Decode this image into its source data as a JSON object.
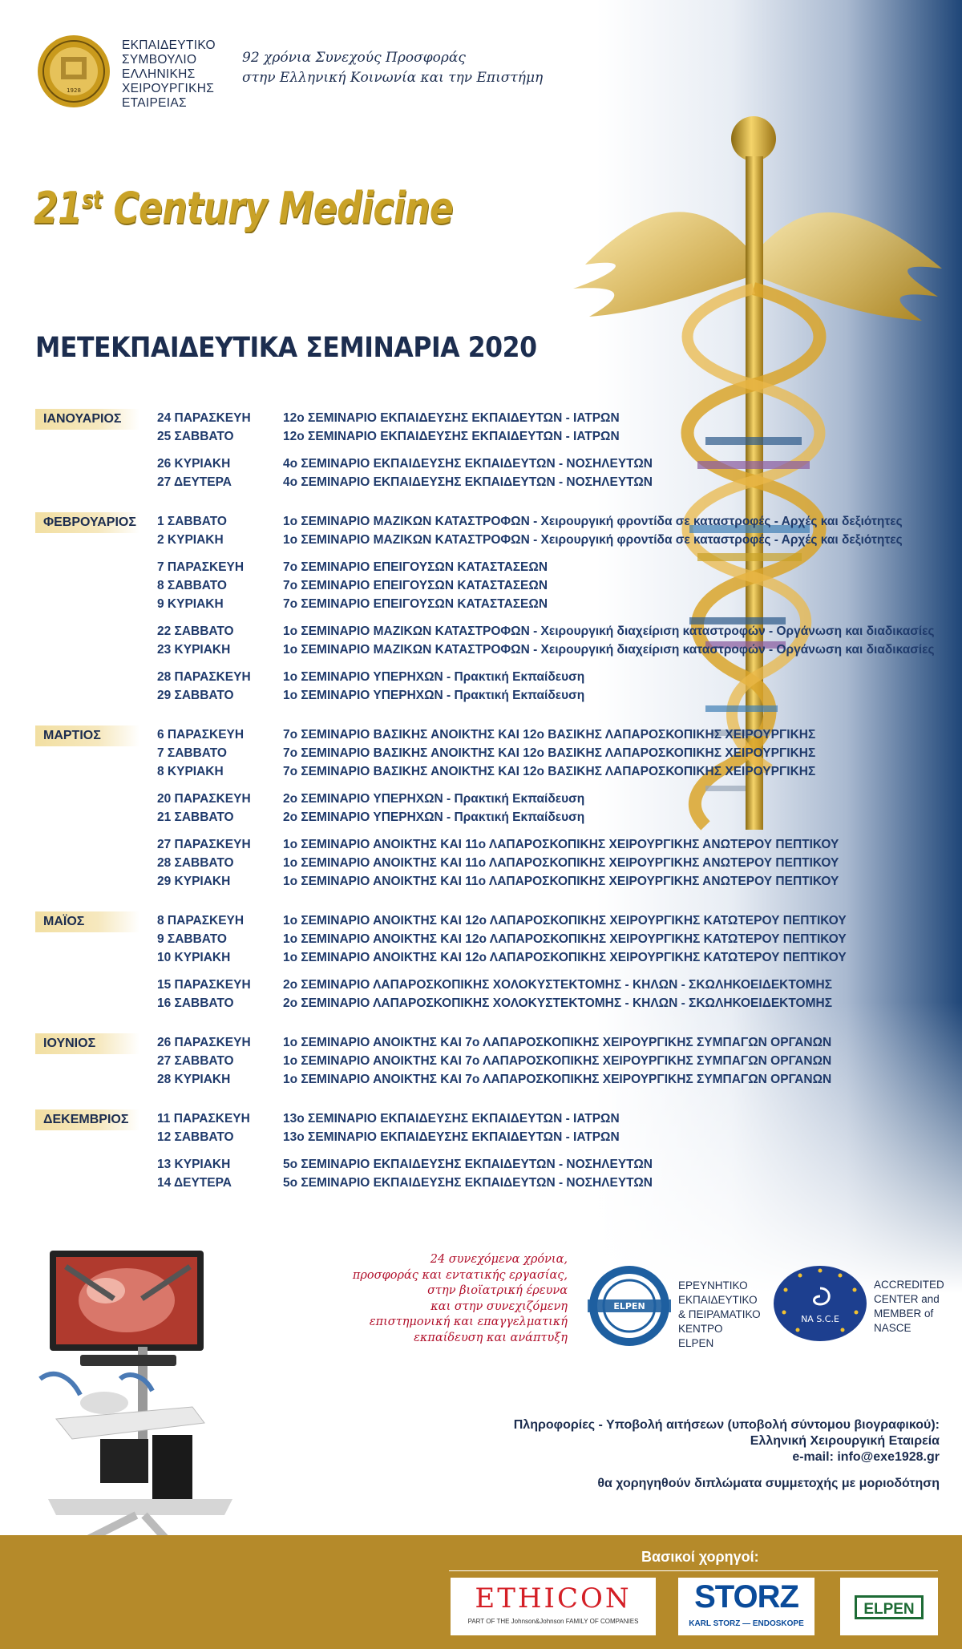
{
  "header": {
    "org_lines": [
      "ΕΚΠΑΙΔΕΥΤΙΚΟ",
      "ΣΥΜΒΟΥΛΙΟ",
      "ΕΛΛΗΝΙΚΗΣ",
      "ΧΕΙΡΟΥΡΓΙΚΗΣ",
      "ΕΤΑΙΡΕΙΑΣ"
    ],
    "motto_lines": [
      "92 χρόνια Συνεχούς Προσφοράς",
      "στην Ελληνική Κοινωνία και την Επιστήμη"
    ],
    "logo_year": "1928",
    "slogan_prefix": "21",
    "slogan_sup": "st",
    "slogan_rest": " Century Medicine",
    "main_title": "ΜΕΤΕΚΠΑΙΔΕΥΤΙΚΑ ΣΕΜΙΝΑΡΙΑ 2020"
  },
  "schedule": [
    {
      "month": "ΙΑΝΟΥΑΡΙΟΣ",
      "groups": [
        [
          {
            "date": "24 ΠΑΡΑΣΚΕΥΗ",
            "title": "12ο ΣΕΜΙΝΑΡΙΟ ΕΚΠΑΙΔΕΥΣΗΣ ΕΚΠΑΙΔΕΥΤΩΝ - ΙΑΤΡΩΝ"
          },
          {
            "date": "25 ΣΑΒΒΑΤΟ",
            "title": "12ο ΣΕΜΙΝΑΡΙΟ ΕΚΠΑΙΔΕΥΣΗΣ ΕΚΠΑΙΔΕΥΤΩΝ - ΙΑΤΡΩΝ"
          }
        ],
        [
          {
            "date": "26 ΚΥΡΙΑΚΗ",
            "title": "4ο ΣΕΜΙΝΑΡΙΟ ΕΚΠΑΙΔΕΥΣΗΣ ΕΚΠΑΙΔΕΥΤΩΝ - ΝΟΣΗΛΕΥΤΩΝ"
          },
          {
            "date": "27 ΔΕΥΤΕΡΑ",
            "title": "4ο ΣΕΜΙΝΑΡΙΟ ΕΚΠΑΙΔΕΥΣΗΣ ΕΚΠΑΙΔΕΥΤΩΝ - ΝΟΣΗΛΕΥΤΩΝ"
          }
        ]
      ]
    },
    {
      "month": "ΦΕΒΡΟΥΑΡΙΟΣ",
      "groups": [
        [
          {
            "date": "1 ΣΑΒΒΑΤΟ",
            "title": "1ο ΣΕΜΙΝΑΡΙΟ ΜΑΖΙΚΩΝ ΚΑΤΑΣΤΡΟΦΩΝ - Χειρουργική φροντίδα σε καταστροφές - Αρχές και δεξιότητες"
          },
          {
            "date": "2 ΚΥΡΙΑΚΗ",
            "title": "1ο ΣΕΜΙΝΑΡΙΟ ΜΑΖΙΚΩΝ ΚΑΤΑΣΤΡΟΦΩΝ - Χειρουργική φροντίδα σε καταστροφές - Αρχές και δεξιότητες"
          }
        ],
        [
          {
            "date": "7 ΠΑΡΑΣΚΕΥΗ",
            "title": "7ο ΣΕΜΙΝΑΡΙΟ ΕΠΕΙΓΟΥΣΩΝ ΚΑΤΑΣΤΑΣΕΩΝ"
          },
          {
            "date": "8 ΣΑΒΒΑΤΟ",
            "title": "7ο ΣΕΜΙΝΑΡΙΟ ΕΠΕΙΓΟΥΣΩΝ ΚΑΤΑΣΤΑΣΕΩΝ"
          },
          {
            "date": "9 ΚΥΡΙΑΚΗ",
            "title": "7ο ΣΕΜΙΝΑΡΙΟ ΕΠΕΙΓΟΥΣΩΝ ΚΑΤΑΣΤΑΣΕΩΝ"
          }
        ],
        [
          {
            "date": "22 ΣΑΒΒΑΤΟ",
            "title": "1ο ΣΕΜΙΝΑΡΙΟ ΜΑΖΙΚΩΝ ΚΑΤΑΣΤΡΟΦΩΝ - Χειρουργική διαχείριση καταστροφών - Οργάνωση και διαδικασίες"
          },
          {
            "date": "23 ΚΥΡΙΑΚΗ",
            "title": "1ο ΣΕΜΙΝΑΡΙΟ ΜΑΖΙΚΩΝ ΚΑΤΑΣΤΡΟΦΩΝ - Χειρουργική διαχείριση καταστροφών - Οργάνωση και διαδικασίες"
          }
        ],
        [
          {
            "date": "28 ΠΑΡΑΣΚΕΥΗ",
            "title": "1ο ΣΕΜΙΝΑΡΙΟ ΥΠΕΡΗΧΩΝ - Πρακτική Εκπαίδευση"
          },
          {
            "date": "29 ΣΑΒΒΑΤΟ",
            "title": "1ο ΣΕΜΙΝΑΡΙΟ ΥΠΕΡΗΧΩΝ - Πρακτική Εκπαίδευση"
          }
        ]
      ]
    },
    {
      "month": "ΜΑΡΤΙΟΣ",
      "groups": [
        [
          {
            "date": "6 ΠΑΡΑΣΚΕΥΗ",
            "title": "7ο ΣΕΜΙΝΑΡΙΟ ΒΑΣΙΚΗΣ ΑΝΟΙΚΤΗΣ ΚΑΙ 12ο ΒΑΣΙΚΗΣ ΛΑΠΑΡΟΣΚΟΠΙΚΗΣ ΧΕΙΡΟΥΡΓΙΚΗΣ"
          },
          {
            "date": "7 ΣΑΒΒΑΤΟ",
            "title": "7ο ΣΕΜΙΝΑΡΙΟ ΒΑΣΙΚΗΣ ΑΝΟΙΚΤΗΣ ΚΑΙ 12ο ΒΑΣΙΚΗΣ ΛΑΠΑΡΟΣΚΟΠΙΚΗΣ ΧΕΙΡΟΥΡΓΙΚΗΣ"
          },
          {
            "date": "8 ΚΥΡΙΑΚΗ",
            "title": "7ο ΣΕΜΙΝΑΡΙΟ ΒΑΣΙΚΗΣ ΑΝΟΙΚΤΗΣ ΚΑΙ 12ο ΒΑΣΙΚΗΣ ΛΑΠΑΡΟΣΚΟΠΙΚΗΣ ΧΕΙΡΟΥΡΓΙΚΗΣ"
          }
        ],
        [
          {
            "date": "20 ΠΑΡΑΣΚΕΥΗ",
            "title": "2ο ΣΕΜΙΝΑΡΙΟ ΥΠΕΡΗΧΩΝ - Πρακτική Εκπαίδευση"
          },
          {
            "date": "21 ΣΑΒΒΑΤΟ",
            "title": "2ο ΣΕΜΙΝΑΡΙΟ ΥΠΕΡΗΧΩΝ - Πρακτική Εκπαίδευση"
          }
        ],
        [
          {
            "date": "27 ΠΑΡΑΣΚΕΥΗ",
            "title": "1ο ΣΕΜΙΝΑΡΙΟ ΑΝΟΙΚΤΗΣ ΚΑΙ 11ο ΛΑΠΑΡΟΣΚΟΠΙΚΗΣ ΧΕΙΡΟΥΡΓΙΚΗΣ ΑΝΩΤΕΡΟΥ ΠΕΠΤΙΚΟΥ"
          },
          {
            "date": "28 ΣΑΒΒΑΤΟ",
            "title": "1ο ΣΕΜΙΝΑΡΙΟ ΑΝΟΙΚΤΗΣ ΚΑΙ 11ο ΛΑΠΑΡΟΣΚΟΠΙΚΗΣ ΧΕΙΡΟΥΡΓΙΚΗΣ ΑΝΩΤΕΡΟΥ ΠΕΠΤΙΚΟΥ"
          },
          {
            "date": "29 ΚΥΡΙΑΚΗ",
            "title": "1ο ΣΕΜΙΝΑΡΙΟ ΑΝΟΙΚΤΗΣ ΚΑΙ 11ο ΛΑΠΑΡΟΣΚΟΠΙΚΗΣ ΧΕΙΡΟΥΡΓΙΚΗΣ ΑΝΩΤΕΡΟΥ ΠΕΠΤΙΚΟΥ"
          }
        ]
      ]
    },
    {
      "month": "ΜΑΪΟΣ",
      "groups": [
        [
          {
            "date": "8 ΠΑΡΑΣΚΕΥΗ",
            "title": "1ο ΣΕΜΙΝΑΡΙΟ ΑΝΟΙΚΤΗΣ ΚΑΙ 12ο ΛΑΠΑΡΟΣΚΟΠΙΚΗΣ ΧΕΙΡΟΥΡΓΙΚΗΣ ΚΑΤΩΤΕΡΟΥ ΠΕΠΤΙΚΟΥ"
          },
          {
            "date": "9 ΣΑΒΒΑΤΟ",
            "title": "1ο ΣΕΜΙΝΑΡΙΟ ΑΝΟΙΚΤΗΣ ΚΑΙ 12ο ΛΑΠΑΡΟΣΚΟΠΙΚΗΣ ΧΕΙΡΟΥΡΓΙΚΗΣ ΚΑΤΩΤΕΡΟΥ ΠΕΠΤΙΚΟΥ"
          },
          {
            "date": "10 ΚΥΡΙΑΚΗ",
            "title": "1ο ΣΕΜΙΝΑΡΙΟ ΑΝΟΙΚΤΗΣ ΚΑΙ 12ο ΛΑΠΑΡΟΣΚΟΠΙΚΗΣ ΧΕΙΡΟΥΡΓΙΚΗΣ ΚΑΤΩΤΕΡΟΥ ΠΕΠΤΙΚΟΥ"
          }
        ],
        [
          {
            "date": "15 ΠΑΡΑΣΚΕΥΗ",
            "title": "2ο ΣΕΜΙΝΑΡΙΟ ΛΑΠΑΡΟΣΚΟΠΙΚΗΣ ΧΟΛΟΚΥΣΤΕΚΤΟΜΗΣ - ΚΗΛΩΝ - ΣΚΩΛΗΚΟΕΙΔΕΚΤΟΜΗΣ"
          },
          {
            "date": "16 ΣΑΒΒΑΤΟ",
            "title": "2ο ΣΕΜΙΝΑΡΙΟ ΛΑΠΑΡΟΣΚΟΠΙΚΗΣ ΧΟΛΟΚΥΣΤΕΚΤΟΜΗΣ - ΚΗΛΩΝ - ΣΚΩΛΗΚΟΕΙΔΕΚΤΟΜΗΣ"
          }
        ]
      ]
    },
    {
      "month": "ΙΟΥΝΙΟΣ",
      "groups": [
        [
          {
            "date": "26 ΠΑΡΑΣΚΕΥΗ",
            "title": "1ο ΣΕΜΙΝΑΡΙΟ ΑΝΟΙΚΤΗΣ ΚΑΙ 7ο ΛΑΠΑΡΟΣΚΟΠΙΚΗΣ ΧΕΙΡΟΥΡΓΙΚΗΣ ΣΥΜΠΑΓΩΝ ΟΡΓΑΝΩΝ"
          },
          {
            "date": "27 ΣΑΒΒΑΤΟ",
            "title": "1ο ΣΕΜΙΝΑΡΙΟ ΑΝΟΙΚΤΗΣ ΚΑΙ 7ο ΛΑΠΑΡΟΣΚΟΠΙΚΗΣ ΧΕΙΡΟΥΡΓΙΚΗΣ ΣΥΜΠΑΓΩΝ ΟΡΓΑΝΩΝ"
          },
          {
            "date": "28 ΚΥΡΙΑΚΗ",
            "title": "1ο ΣΕΜΙΝΑΡΙΟ ΑΝΟΙΚΤΗΣ ΚΑΙ 7ο ΛΑΠΑΡΟΣΚΟΠΙΚΗΣ ΧΕΙΡΟΥΡΓΙΚΗΣ ΣΥΜΠΑΓΩΝ ΟΡΓΑΝΩΝ"
          }
        ]
      ]
    },
    {
      "month": "ΔΕΚΕΜΒΡΙΟΣ",
      "groups": [
        [
          {
            "date": "11 ΠΑΡΑΣΚΕΥΗ",
            "title": "13ο ΣΕΜΙΝΑΡΙΟ ΕΚΠΑΙΔΕΥΣΗΣ ΕΚΠΑΙΔΕΥΤΩΝ - ΙΑΤΡΩΝ"
          },
          {
            "date": "12 ΣΑΒΒΑΤΟ",
            "title": "13ο ΣΕΜΙΝΑΡΙΟ ΕΚΠΑΙΔΕΥΣΗΣ ΕΚΠΑΙΔΕΥΤΩΝ - ΙΑΤΡΩΝ"
          }
        ],
        [
          {
            "date": "13 ΚΥΡΙΑΚΗ",
            "title": "5ο ΣΕΜΙΝΑΡΙΟ ΕΚΠΑΙΔΕΥΣΗΣ ΕΚΠΑΙΔΕΥΤΩΝ - ΝΟΣΗΛΕΥΤΩΝ"
          },
          {
            "date": "14 ΔΕΥΤΕΡΑ",
            "title": "5ο ΣΕΜΙΝΑΡΙΟ ΕΚΠΑΙΔΕΥΣΗΣ ΕΚΠΑΙΔΕΥΤΩΝ - ΝΟΣΗΛΕΥΤΩΝ"
          }
        ]
      ]
    }
  ],
  "footer": {
    "quote_lines": [
      "24 συνεχόμενα χρόνια,",
      "προσφοράς και εντατικής εργασίας,",
      "στην βιοϊατρική έρευνα",
      "και στην συνεχιζόμενη",
      "επιστημονική και επαγγελματική",
      "εκπαίδευση και ανάπτυξη"
    ],
    "elpen_text_lines": [
      "ΕΡΕΥΝΗΤΙΚΟ",
      "ΕΚΠΑΙΔΕΥΤΙΚΟ",
      "& ΠΕΙΡΑΜΑΤΙΚΟ",
      "ΚΕΝΤΡΟ",
      "ELPEN"
    ],
    "elpen_logo_label": "ELPEN",
    "nasce_text_lines": [
      "ACCREDITED",
      "CENTER and",
      "MEMBER of",
      "NASCE"
    ],
    "nasce_logo_label": "NA  S.C.E",
    "info_lines": [
      "Πληροφορίες - Υποβολή αιτήσεων (υποβολή σύντομου βιογραφικού):",
      "Ελληνική Χειρουργική Εταιρεία",
      "e-mail: info@exe1928.gr"
    ],
    "certificates": "θα χορηγηθούν διπλώματα συμμετοχής με μοριοδότηση",
    "sponsors_title": "Βασικοί χορηγοί:",
    "sponsors": {
      "ethicon": "ETHICON",
      "ethicon_sub": "PART OF THE Johnson&Johnson FAMILY OF COMPANIES",
      "storz": "STORZ",
      "storz_sub": "KARL STORZ — ENDOSKOPE",
      "elpen": "ELPEN"
    }
  },
  "colors": {
    "navy": "#1c2d4f",
    "row_text": "#1f3a6b",
    "gold": "#c9a227",
    "sponsor_band": "#b58a2a",
    "quote_red": "#b1102b"
  },
  "icons": [
    "society-seal-logo",
    "caduceus-dna-illustration",
    "laparoscopy-monitor-cart",
    "elpen-seal-logo",
    "nasce-star-logo"
  ]
}
